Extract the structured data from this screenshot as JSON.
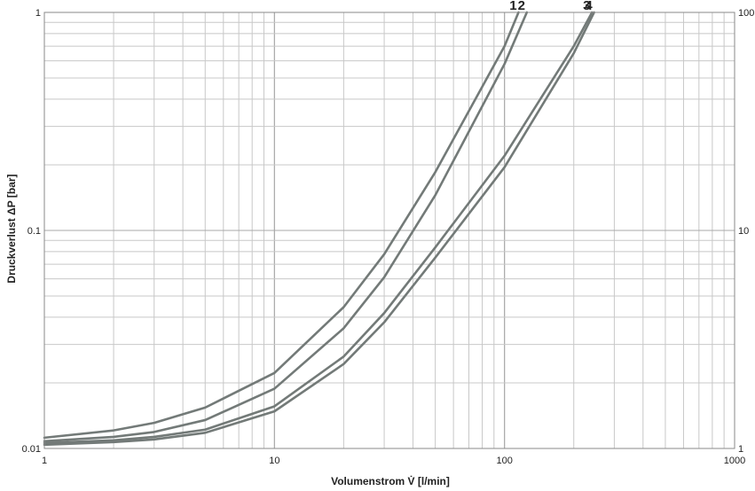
{
  "chart_data": {
    "type": "line",
    "xlabel": "Volumenstrom V̇ [l/min]",
    "ylabel": "Druckverlust ΔP [bar]",
    "x_scale": "log",
    "y_scale": "log",
    "xlim": [
      1,
      1000
    ],
    "ylim": [
      0.01,
      1
    ],
    "x_ticks": [
      "1",
      "10",
      "100",
      "1000"
    ],
    "y_ticks": [
      "0.01",
      "0.1",
      "1"
    ],
    "y2_ticks": [
      "1",
      "10",
      "100"
    ],
    "grid": true,
    "series": [
      {
        "name": "1",
        "x": [
          1,
          2,
          3,
          5,
          10,
          20,
          30,
          50,
          100,
          115
        ],
        "y": [
          0.0112,
          0.0121,
          0.0131,
          0.0154,
          0.0222,
          0.0445,
          0.0778,
          0.185,
          0.7,
          1.0
        ]
      },
      {
        "name": "2",
        "x": [
          1,
          2,
          3,
          5,
          10,
          20,
          30,
          50,
          100,
          125
        ],
        "y": [
          0.0108,
          0.0113,
          0.0119,
          0.0135,
          0.0188,
          0.0356,
          0.061,
          0.145,
          0.58,
          1.0
        ]
      },
      {
        "name": "3",
        "x": [
          1,
          2,
          3,
          5,
          10,
          20,
          30,
          50,
          100,
          200,
          240
        ],
        "y": [
          0.0106,
          0.0109,
          0.0113,
          0.0122,
          0.0156,
          0.0264,
          0.0418,
          0.0836,
          0.22,
          0.7,
          1.0
        ]
      },
      {
        "name": "4",
        "x": [
          1,
          2,
          3,
          5,
          10,
          20,
          30,
          50,
          100,
          200,
          245
        ],
        "y": [
          0.0104,
          0.0107,
          0.011,
          0.0118,
          0.0148,
          0.0244,
          0.0379,
          0.075,
          0.195,
          0.65,
          1.0
        ]
      }
    ],
    "curve_labels": [
      "1",
      "2",
      "3",
      "4"
    ],
    "colors": {
      "curve": "#737a78",
      "grid": "#c8c8c8",
      "frame": "#8a8a8a"
    }
  }
}
